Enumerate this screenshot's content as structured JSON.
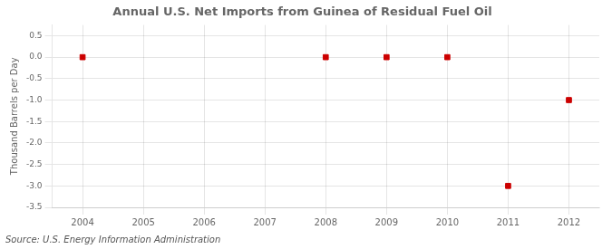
{
  "chart_data": {
    "type": "scatter",
    "title": "Annual U.S. Net Imports from Guinea of Residual Fuel Oil",
    "y_label": "Thousand Barrels per Day",
    "source": "Source: U.S. Energy Information Administration",
    "x": [
      2004,
      2008,
      2009,
      2010,
      2011,
      2012
    ],
    "values": [
      0.0,
      0.0,
      0.0,
      0.0,
      -3.0,
      -1.0
    ],
    "color": "#cc0000",
    "marker": "square",
    "xlim": [
      2003.5,
      2012.5
    ],
    "xticks": [
      2004,
      2005,
      2006,
      2007,
      2008,
      2009,
      2010,
      2011,
      2012
    ],
    "ylim": [
      -3.5,
      0.75
    ],
    "yticks": [
      0.5,
      {
        "value": 0.0,
        "label": "0.0"
      },
      -0.5,
      {
        "value": -1.0,
        "label": "-1.0"
      },
      -1.5,
      {
        "value": -2.0,
        "label": "-2.0"
      },
      -2.5,
      {
        "value": -3.0,
        "label": "-3.0"
      },
      -3.5
    ],
    "grid": true
  }
}
